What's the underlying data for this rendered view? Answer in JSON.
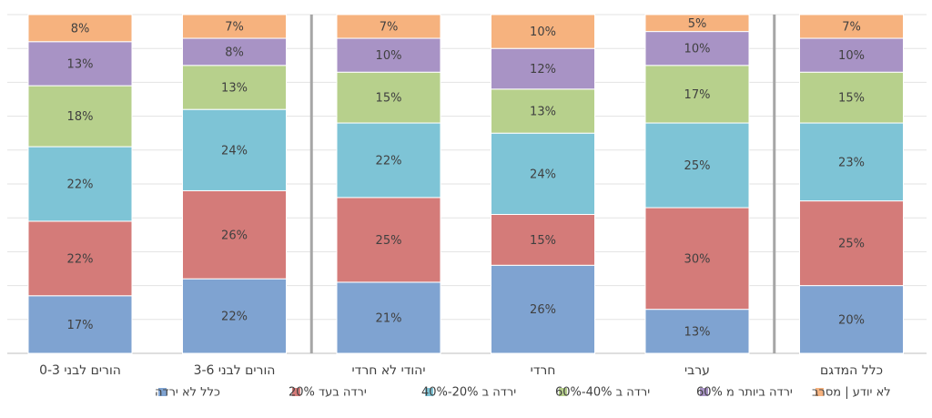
{
  "chart_data": {
    "type": "bar",
    "stacked": true,
    "ylim": [
      0,
      100
    ],
    "grid": true,
    "legend_position": "bottom",
    "categories": [
      "הורים לבני 0-3",
      "הורים לבני 3-6",
      "יהודי לא חרדי",
      "חרדי",
      "ערבי",
      "כלל המדגם"
    ],
    "group_separators_after": [
      1,
      4
    ],
    "series": [
      {
        "name": "כלל לא ירדה",
        "color": "#7fa3d1",
        "values": [
          17,
          22,
          21,
          26,
          13,
          20
        ],
        "labels": [
          "17%",
          "22%",
          "21%",
          "26%",
          "13%",
          "20%"
        ]
      },
      {
        "name": "ירדה בעד 20%",
        "color": "#d47b79",
        "values": [
          22,
          26,
          25,
          15,
          30,
          25
        ],
        "labels": [
          "22%",
          "26%",
          "25%",
          "15%",
          "30%",
          "25%"
        ]
      },
      {
        "name": "ירדה ב 20%-40%",
        "color": "#7ec4d6",
        "values": [
          22,
          24,
          22,
          24,
          25,
          23
        ],
        "labels": [
          "22%",
          "24%",
          "22%",
          "24%",
          "25%",
          "23%"
        ]
      },
      {
        "name": "ירדה ב 40%-60%",
        "color": "#b7d08c",
        "values": [
          18,
          13,
          15,
          13,
          17,
          15
        ],
        "labels": [
          "18%",
          "13%",
          "15%",
          "13%",
          "17%",
          "15%"
        ]
      },
      {
        "name": "ירדה ביותר מ 60%",
        "color": "#a893c5",
        "values": [
          13,
          8,
          10,
          12,
          10,
          10
        ],
        "labels": [
          "13%",
          "8%",
          "10%",
          "12%",
          "10%",
          "10%"
        ]
      },
      {
        "name": "לא יודע | מסרב",
        "color": "#f6b27e",
        "values": [
          8,
          7,
          7,
          10,
          5,
          7
        ],
        "labels": [
          "8%",
          "7%",
          "7%",
          "10%",
          "5%",
          "7%"
        ]
      }
    ]
  }
}
